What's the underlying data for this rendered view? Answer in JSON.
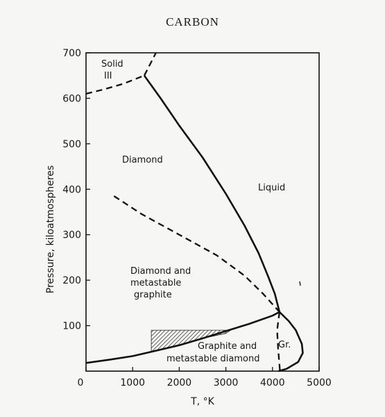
{
  "title": "CARBON",
  "chart_data": {
    "type": "line",
    "xlabel": "T, °K",
    "ylabel": "Pressure, kiloatmospheres",
    "xlim": [
      0,
      5000
    ],
    "ylim": [
      0,
      700
    ],
    "x_ticks": [
      "0",
      "1000",
      "2000",
      "3000",
      "4000",
      "5000"
    ],
    "y_ticks": [
      "100",
      "200",
      "300",
      "400",
      "500",
      "600",
      "700"
    ],
    "region_labels": {
      "solid_iii_1": "Solid",
      "solid_iii_2": "III",
      "diamond": "Diamond",
      "liquid": "Liquid",
      "diamond_metastable_1": "Diamond and",
      "diamond_metastable_2": "metastable",
      "diamond_metastable_3": "graphite",
      "graphite_metastable_1": "Graphite and",
      "graphite_metastable_2": "metastable diamond",
      "graphite_short": "Gr."
    },
    "series": [
      {
        "style": "solid",
        "points": [
          [
            0,
            18
          ],
          [
            500,
            25
          ],
          [
            1000,
            33
          ],
          [
            1500,
            45
          ],
          [
            2000,
            57
          ],
          [
            2500,
            72
          ],
          [
            3000,
            88
          ],
          [
            3500,
            104
          ],
          [
            4000,
            122
          ],
          [
            4150,
            130
          ]
        ]
      },
      {
        "style": "solid",
        "points": [
          [
            1250,
            650
          ],
          [
            1600,
            600
          ],
          [
            2000,
            540
          ],
          [
            2500,
            470
          ],
          [
            3000,
            390
          ],
          [
            3400,
            320
          ],
          [
            3700,
            260
          ],
          [
            3900,
            210
          ],
          [
            4050,
            170
          ],
          [
            4150,
            130
          ]
        ]
      },
      {
        "style": "solid",
        "points": [
          [
            4150,
            130
          ],
          [
            4350,
            110
          ],
          [
            4500,
            90
          ],
          [
            4630,
            60
          ],
          [
            4650,
            40
          ],
          [
            4550,
            20
          ],
          [
            4300,
            5
          ],
          [
            4130,
            0
          ]
        ]
      },
      {
        "style": "dashed",
        "points": [
          [
            0,
            610
          ],
          [
            400,
            620
          ],
          [
            800,
            632
          ],
          [
            1250,
            650
          ]
        ]
      },
      {
        "style": "dashed",
        "points": [
          [
            1250,
            650
          ],
          [
            1400,
            680
          ],
          [
            1500,
            700
          ]
        ]
      },
      {
        "style": "dashed",
        "points": [
          [
            600,
            385
          ],
          [
            1200,
            345
          ],
          [
            2000,
            300
          ],
          [
            2800,
            255
          ],
          [
            3400,
            210
          ],
          [
            3800,
            170
          ],
          [
            4150,
            130
          ]
        ]
      },
      {
        "style": "dashed",
        "points": [
          [
            4150,
            130
          ],
          [
            4100,
            90
          ],
          [
            4120,
            50
          ],
          [
            4160,
            0
          ]
        ]
      }
    ],
    "hatched_region": {
      "points": [
        [
          1400,
          90
        ],
        [
          3100,
          90
        ],
        [
          3000,
          83
        ],
        [
          2500,
          72
        ],
        [
          2000,
          57
        ],
        [
          1400,
          42
        ]
      ]
    }
  }
}
